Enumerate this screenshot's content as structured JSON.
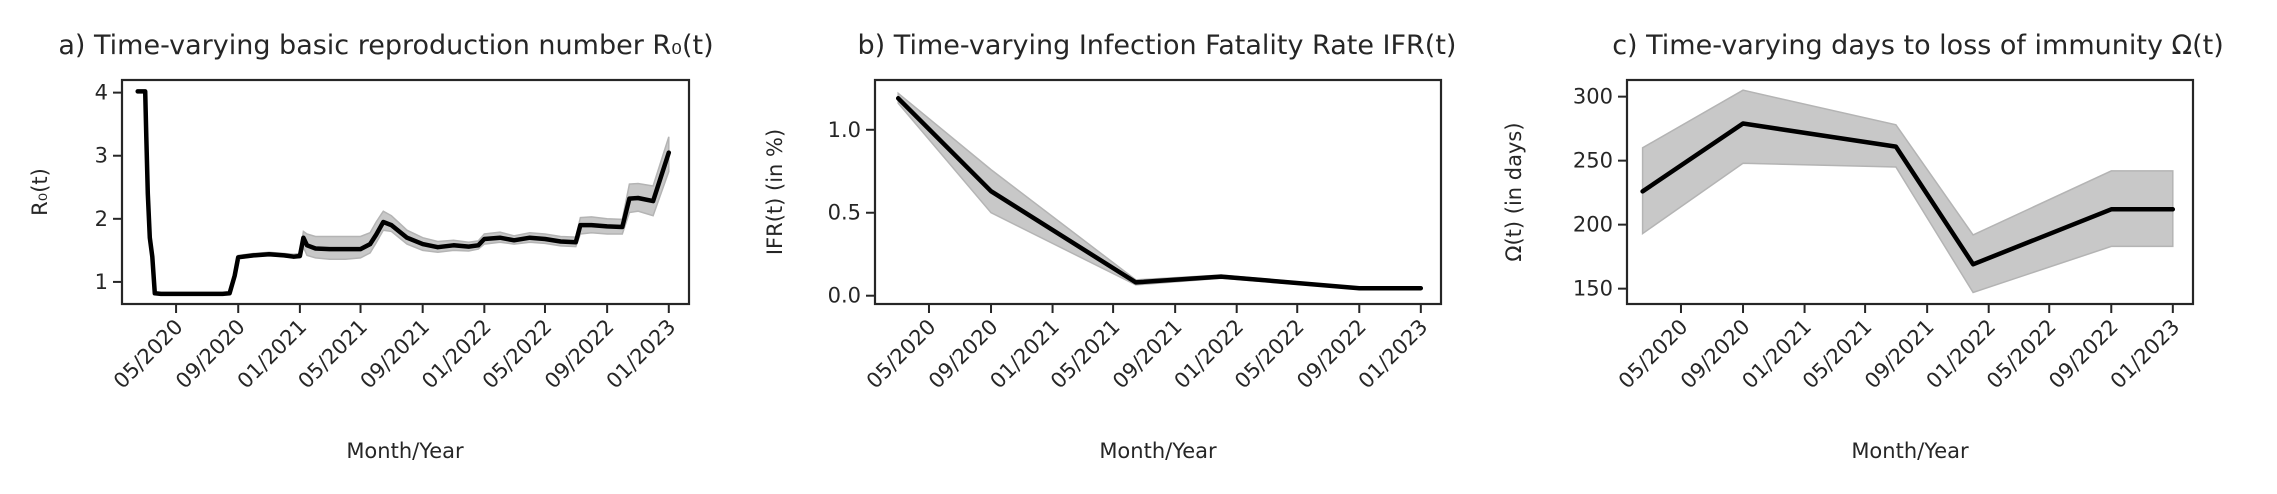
{
  "chart_data": [
    {
      "type": "line",
      "title": "a) Time-varying basic reproduction number R₀(t)",
      "xlabel": "Month/Year",
      "ylabel": "R₀(t)",
      "ylim": [
        0.65,
        4.2
      ],
      "yticks": [
        1,
        2,
        3,
        4
      ],
      "xlim": [
        "2020-01-15",
        "2023-02-10"
      ],
      "xticks": [
        "2020-05-01",
        "2020-09-01",
        "2021-01-01",
        "2021-05-01",
        "2021-09-01",
        "2022-01-01",
        "2022-05-01",
        "2022-09-01",
        "2023-01-01"
      ],
      "xticklabels": [
        "05/2020",
        "09/2020",
        "01/2021",
        "05/2021",
        "09/2021",
        "01/2022",
        "05/2022",
        "09/2022",
        "01/2023"
      ],
      "series": [
        {
          "x": [
            "2020-02-15",
            "2020-03-01",
            "2020-03-03",
            "2020-03-06",
            "2020-03-10",
            "2020-03-15",
            "2020-03-20",
            "2020-04-01",
            "2020-06-01",
            "2020-08-01",
            "2020-08-15",
            "2020-08-25",
            "2020-09-01",
            "2020-10-01",
            "2020-11-01",
            "2020-12-01",
            "2020-12-20",
            "2021-01-01",
            "2021-01-08",
            "2021-01-15",
            "2021-02-01",
            "2021-03-01",
            "2021-04-01",
            "2021-05-01",
            "2021-05-20",
            "2021-06-01",
            "2021-06-15",
            "2021-07-01",
            "2021-08-01",
            "2021-09-01",
            "2021-10-01",
            "2021-11-01",
            "2021-12-01",
            "2021-12-20",
            "2022-01-01",
            "2022-02-01",
            "2022-03-01",
            "2022-04-01",
            "2022-05-01",
            "2022-06-01",
            "2022-07-01",
            "2022-07-10",
            "2022-08-01",
            "2022-09-01",
            "2022-10-01",
            "2022-10-15",
            "2022-11-01",
            "2022-12-01",
            "2023-01-01"
          ],
          "values": [
            4.02,
            4.02,
            3.3,
            2.4,
            1.7,
            1.4,
            0.82,
            0.81,
            0.81,
            0.81,
            0.82,
            1.1,
            1.39,
            1.42,
            1.44,
            1.42,
            1.4,
            1.41,
            1.7,
            1.58,
            1.53,
            1.52,
            1.52,
            1.52,
            1.6,
            1.75,
            1.95,
            1.9,
            1.7,
            1.6,
            1.55,
            1.58,
            1.56,
            1.58,
            1.68,
            1.7,
            1.66,
            1.7,
            1.68,
            1.64,
            1.63,
            1.9,
            1.9,
            1.88,
            1.87,
            2.32,
            2.33,
            2.28,
            3.05
          ],
          "lower": [
            4.02,
            4.02,
            3.3,
            2.4,
            1.7,
            1.4,
            0.82,
            0.81,
            0.81,
            0.81,
            0.82,
            1.1,
            1.37,
            1.4,
            1.42,
            1.4,
            1.38,
            1.38,
            1.55,
            1.42,
            1.38,
            1.36,
            1.36,
            1.38,
            1.46,
            1.62,
            1.82,
            1.8,
            1.6,
            1.5,
            1.47,
            1.5,
            1.49,
            1.52,
            1.6,
            1.63,
            1.6,
            1.63,
            1.61,
            1.57,
            1.56,
            1.76,
            1.78,
            1.76,
            1.76,
            2.1,
            2.12,
            2.05,
            2.75
          ],
          "upper": [
            4.02,
            4.02,
            3.3,
            2.4,
            1.7,
            1.4,
            0.82,
            0.81,
            0.81,
            0.81,
            0.82,
            1.1,
            1.42,
            1.45,
            1.47,
            1.45,
            1.44,
            1.45,
            1.8,
            1.76,
            1.72,
            1.72,
            1.72,
            1.72,
            1.78,
            1.95,
            2.12,
            2.05,
            1.82,
            1.7,
            1.64,
            1.66,
            1.63,
            1.65,
            1.76,
            1.79,
            1.73,
            1.78,
            1.76,
            1.72,
            1.71,
            2.02,
            2.03,
            2.0,
            1.99,
            2.55,
            2.56,
            2.52,
            3.3
          ]
        }
      ],
      "grid": false
    },
    {
      "type": "line",
      "title": "b) Time-varying Infection Fatality Rate IFR(t)",
      "xlabel": "Month/Year",
      "ylabel": "IFR(t) (in %)",
      "ylim": [
        -0.05,
        1.3
      ],
      "yticks": [
        0.0,
        0.5,
        1.0
      ],
      "yticklabels": [
        "0.0",
        "0.5",
        "1.0"
      ],
      "xlim": [
        "2020-01-15",
        "2023-02-10"
      ],
      "xticks": [
        "2020-05-01",
        "2020-09-01",
        "2021-01-01",
        "2021-05-01",
        "2021-09-01",
        "2022-01-01",
        "2022-05-01",
        "2022-09-01",
        "2023-01-01"
      ],
      "xticklabels": [
        "05/2020",
        "09/2020",
        "01/2021",
        "05/2021",
        "09/2021",
        "01/2022",
        "05/2022",
        "09/2022",
        "01/2023"
      ],
      "series": [
        {
          "x": [
            "2020-03-01",
            "2020-09-01",
            "2021-06-15",
            "2021-12-01",
            "2022-09-01",
            "2023-01-01"
          ],
          "values": [
            1.19,
            0.63,
            0.08,
            0.115,
            0.045,
            0.045
          ],
          "lower": [
            1.16,
            0.5,
            0.065,
            0.105,
            0.04,
            0.04
          ],
          "upper": [
            1.22,
            0.76,
            0.095,
            0.125,
            0.05,
            0.05
          ]
        }
      ],
      "grid": false
    },
    {
      "type": "line",
      "title": "c) Time-varying days to loss of immunity Ω(t)",
      "xlabel": "Month/Year",
      "ylabel": "Ω(t) (in days)",
      "ylim": [
        138,
        313
      ],
      "yticks": [
        150,
        200,
        250,
        300
      ],
      "xlim": [
        "2020-01-15",
        "2023-02-10"
      ],
      "xticks": [
        "2020-05-01",
        "2020-09-01",
        "2021-01-01",
        "2021-05-01",
        "2021-09-01",
        "2022-01-01",
        "2022-05-01",
        "2022-09-01",
        "2023-01-01"
      ],
      "xticklabels": [
        "05/2020",
        "09/2020",
        "01/2021",
        "05/2021",
        "09/2021",
        "01/2022",
        "05/2022",
        "09/2022",
        "01/2023"
      ],
      "series": [
        {
          "x": [
            "2020-02-15",
            "2020-09-01",
            "2021-07-01",
            "2021-12-01",
            "2022-09-01",
            "2023-01-01"
          ],
          "values": [
            226,
            279,
            261,
            169,
            212,
            212
          ],
          "lower": [
            193,
            248,
            245,
            147,
            183,
            183
          ],
          "upper": [
            260,
            305,
            278,
            192,
            242,
            242
          ]
        }
      ],
      "grid": false
    }
  ]
}
